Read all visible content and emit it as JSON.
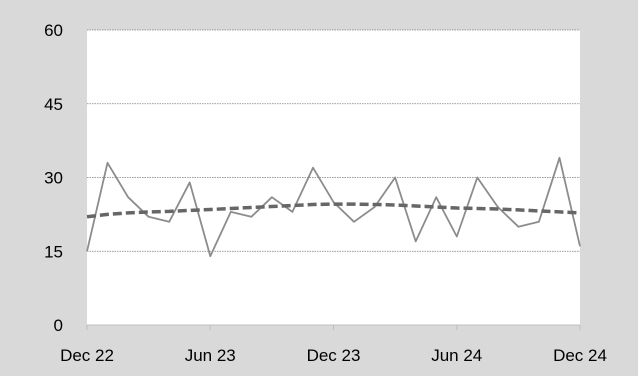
{
  "chart_data": {
    "type": "line",
    "title": "",
    "xlabel": "",
    "ylabel": "",
    "ylim": [
      0,
      60
    ],
    "yticks": [
      0,
      15,
      30,
      45,
      60
    ],
    "x_tick_labels": [
      "Dec 22",
      "Jun 23",
      "Dec 23",
      "Jun 24",
      "Dec 24"
    ],
    "grid": "horizontal",
    "legend": "none",
    "x": [
      "2022-12",
      "2023-01",
      "2023-02",
      "2023-03",
      "2023-04",
      "2023-05",
      "2023-06",
      "2023-07",
      "2023-08",
      "2023-09",
      "2023-10",
      "2023-11",
      "2023-12",
      "2024-01",
      "2024-02",
      "2024-03",
      "2024-04",
      "2024-05",
      "2024-06",
      "2024-07",
      "2024-08",
      "2024-09",
      "2024-10",
      "2024-11",
      "2024-12"
    ],
    "series": [
      {
        "values": [
          15,
          33,
          26,
          22,
          21,
          29,
          14,
          23,
          22,
          26,
          23,
          32,
          25,
          21,
          24,
          30,
          17,
          26,
          18,
          30,
          24,
          20,
          21,
          34,
          16
        ],
        "color": "#8c8c8c",
        "style": "solid"
      },
      {
        "values": [
          22.0,
          22.5,
          22.8,
          23.0,
          23.1,
          23.3,
          23.5,
          23.7,
          23.9,
          24.1,
          24.3,
          24.5,
          24.6,
          24.6,
          24.5,
          24.4,
          24.2,
          24.0,
          23.8,
          23.7,
          23.6,
          23.4,
          23.2,
          23.0,
          22.8
        ],
        "color": "#666666",
        "style": "dashed"
      }
    ]
  }
}
